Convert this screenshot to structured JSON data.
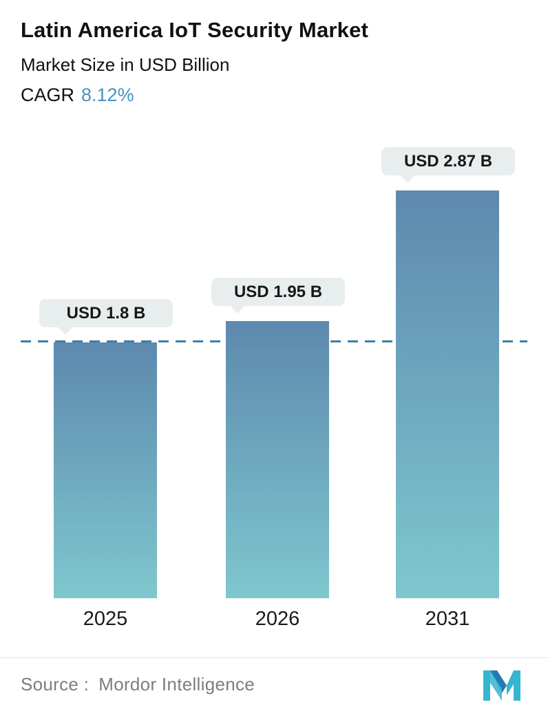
{
  "header": {
    "title": "Latin America IoT Security Market",
    "subtitle": "Market Size in USD Billion",
    "cagr_label": "CAGR",
    "cagr_value": "8.12%",
    "cagr_color": "#4592c2"
  },
  "chart_data": {
    "type": "bar",
    "title": "Latin America IoT Security Market",
    "ylabel": "Market Size in USD Billion",
    "categories": [
      "2025",
      "2026",
      "2031"
    ],
    "values": [
      1.8,
      1.95,
      2.87
    ],
    "value_labels": [
      "USD 1.8 B",
      "USD 1.95 B",
      "USD 2.87 B"
    ],
    "ylim": [
      0,
      3.3
    ],
    "grid": false,
    "legend": false,
    "reference_line_value": 1.8,
    "reference_line_color": "#3d7fa7",
    "bar_gradient_top": "#5d89ae",
    "bar_gradient_bottom": "#7fc7ce"
  },
  "footer": {
    "source_label": "Source :",
    "source_value": "Mordor Intelligence",
    "logo_name": "mordor-intelligence-logo",
    "logo_color_primary": "#35b5cf",
    "logo_color_secondary": "#2479b5"
  }
}
